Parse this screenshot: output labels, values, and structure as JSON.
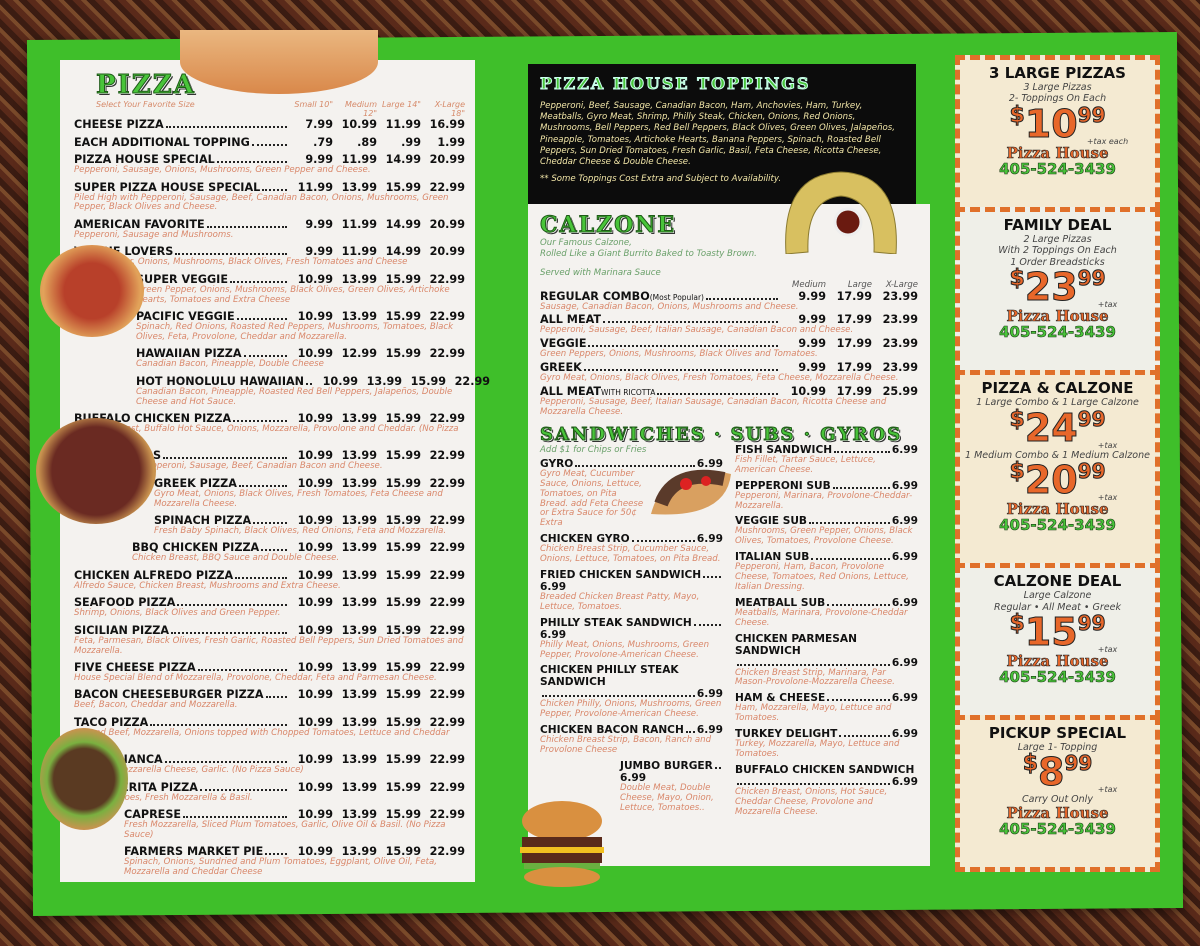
{
  "pizza": {
    "title": "PIZZA",
    "size_label": "Select Your Favorite Size",
    "sizes": [
      "Small 10\"",
      "Medium 12\"",
      "Large 14\"",
      "X-Large 18\""
    ],
    "items": [
      {
        "name": "CHEESE PIZZA",
        "prices": [
          "7.99",
          "10.99",
          "11.99",
          "16.99"
        ],
        "desc": ""
      },
      {
        "name": "EACH ADDITIONAL TOPPING",
        "prices": [
          ".79",
          ".89",
          ".99",
          "1.99"
        ],
        "desc": ""
      },
      {
        "name": "PIZZA HOUSE SPECIAL",
        "prices": [
          "9.99",
          "11.99",
          "14.99",
          "20.99"
        ],
        "desc": "Pepperoni, Sausage, Onions, Mushrooms, Green Pepper and Cheese."
      },
      {
        "name": "SUPER PIZZA HOUSE SPECIAL",
        "prices": [
          "11.99",
          "13.99",
          "15.99",
          "22.99"
        ],
        "desc": "Piled High with Pepperoni, Sausage, Beef, Canadian Bacon, Onions, Mushrooms, Green Pepper, Black Olives and Cheese."
      },
      {
        "name": "AMERICAN FAVORITE",
        "prices": [
          "9.99",
          "11.99",
          "14.99",
          "20.99"
        ],
        "desc": "Pepperoni, Sausage and Mushrooms."
      },
      {
        "name": "VEGGIE LOVERS",
        "prices": [
          "9.99",
          "11.99",
          "14.99",
          "20.99"
        ],
        "desc": "Green Pepper, Onions, Mushrooms, Black Olives, Fresh Tomatoes and Cheese"
      },
      {
        "name": "SUPER VEGGIE",
        "prices": [
          "10.99",
          "13.99",
          "15.99",
          "22.99"
        ],
        "desc": "Green Pepper, Onions, Mushrooms, Black Olives, Green Olives, Artichoke Hearts, Tomatoes and Extra Cheese"
      },
      {
        "name": "PACIFIC VEGGIE",
        "prices": [
          "10.99",
          "13.99",
          "15.99",
          "22.99"
        ],
        "desc": "Spinach, Red Onions, Roasted Red Peppers, Mushrooms, Tomatoes, Black Olives, Feta, Provolone, Cheddar and Mozzarella."
      },
      {
        "name": "HAWAIIAN PIZZA",
        "prices": [
          "10.99",
          "12.99",
          "15.99",
          "22.99"
        ],
        "desc": "Canadian Bacon, Pineapple, Double Cheese"
      },
      {
        "name": "HOT HONOLULU HAWAIIAN",
        "prices": [
          "10.99",
          "13.99",
          "15.99",
          "22.99"
        ],
        "desc": "Canadian Bacon, Pineapple, Roasted Red Bell Peppers, Jalapeños, Double Cheese and Hot Sauce."
      },
      {
        "name": "BUFFALO CHICKEN PIZZA",
        "prices": [
          "10.99",
          "13.99",
          "15.99",
          "22.99"
        ],
        "desc": "Chicken Breast, Buffalo Hot Sauce, Onions, Mozzarella, Provolone and Cheddar. (No Pizza Sauce)"
      },
      {
        "name": "MEAT LOVERS",
        "prices": [
          "10.99",
          "13.99",
          "15.99",
          "22.99"
        ],
        "desc": "Piled High with Pepperoni, Sausage, Beef, Canadian Bacon and Cheese."
      },
      {
        "name": "GREEK PIZZA",
        "prices": [
          "10.99",
          "13.99",
          "15.99",
          "22.99"
        ],
        "desc": "Gyro Meat, Onions, Black Olives, Fresh Tomatoes, Feta Cheese and Mozzarella Cheese."
      },
      {
        "name": "SPINACH PIZZA",
        "prices": [
          "10.99",
          "13.99",
          "15.99",
          "22.99"
        ],
        "desc": "Fresh Baby Spinach, Black Olives, Red Onions, Feta and Mozzarella."
      },
      {
        "name": "BBQ CHICKEN PIZZA",
        "prices": [
          "10.99",
          "13.99",
          "15.99",
          "22.99"
        ],
        "desc": "Chicken Breast, BBQ Sauce and Double Cheese."
      },
      {
        "name": "CHICKEN ALFREDO PIZZA",
        "prices": [
          "10.99",
          "13.99",
          "15.99",
          "22.99"
        ],
        "desc": "Alfredo Sauce, Chicken Breast, Mushrooms and Extra Cheese."
      },
      {
        "name": "SEAFOOD PIZZA",
        "prices": [
          "10.99",
          "13.99",
          "15.99",
          "22.99"
        ],
        "desc": "Shrimp, Onions, Black Olives and Green Pepper."
      },
      {
        "name": "SICILIAN PIZZA",
        "prices": [
          "10.99",
          "13.99",
          "15.99",
          "22.99"
        ],
        "desc": "Feta, Parmesan, Black Olives, Fresh Garlic, Roasted Bell Peppers, Sun Dried Tomatoes and Mozzarella."
      },
      {
        "name": "FIVE CHEESE PIZZA",
        "prices": [
          "10.99",
          "13.99",
          "15.99",
          "22.99"
        ],
        "desc": "House Special Blend of Mozzarella, Provolone, Cheddar, Feta and Parmesan Cheese."
      },
      {
        "name": "BACON CHEESEBURGER PIZZA",
        "prices": [
          "10.99",
          "13.99",
          "15.99",
          "22.99"
        ],
        "desc": "Beef, Bacon, Cheddar and Mozzarella."
      },
      {
        "name": "TACO PIZZA",
        "prices": [
          "10.99",
          "13.99",
          "15.99",
          "22.99"
        ],
        "desc": "Ground Beef, Mozzarella, Onions topped with Chopped Tomatoes, Lettuce and Cheddar Cheese."
      },
      {
        "name": "PIZZA BIANCA",
        "prices": [
          "10.99",
          "13.99",
          "15.99",
          "22.99"
        ],
        "desc": "Olive Oil, Mozzarella Cheese, Garlic. (No Pizza Sauce)"
      },
      {
        "name": "MARGHERITA PIZZA",
        "prices": [
          "10.99",
          "13.99",
          "15.99",
          "22.99"
        ],
        "desc": "Plum Tomatoes, Fresh Mozzarella & Basil."
      },
      {
        "name": "CAPRESE",
        "prices": [
          "10.99",
          "13.99",
          "15.99",
          "22.99"
        ],
        "desc": "Fresh Mozzarella, Sliced Plum Tomatoes, Garlic, Olive Oil & Basil. (No Pizza Sauce)"
      },
      {
        "name": "FARMERS MARKET PIE",
        "prices": [
          "10.99",
          "13.99",
          "15.99",
          "22.99"
        ],
        "desc": "Spinach, Onions, Sundried and Plum Tomatoes, Eggplant, Olive Oil, Feta, Mozzarella and Cheddar Cheese"
      }
    ]
  },
  "toppings": {
    "title": "PIZZA HOUSE TOPPINGS",
    "text": "Pepperoni, Beef, Sausage, Canadian Bacon, Ham, Anchovies, Ham, Turkey, Meatballs, Gyro Meat, Shrimp, Philly Steak, Chicken, Onions, Red Onions, Mushrooms, Bell Peppers, Red Bell Peppers, Black Olives, Green Olives, Jalapeños, Pineapple, Tomatoes, Artichoke Hearts, Banana Peppers, Spinach, Roasted Bell Peppers, Sun Dried Tomatoes, Fresh Garlic, Basil, Feta Cheese, Ricotta Cheese, Cheddar Cheese & Double Cheese.",
    "note": "** Some Toppings Cost Extra and Subject to Availability."
  },
  "calzone": {
    "title": "CALZONE",
    "intro1": "Our Famous Calzone,",
    "intro2": "Rolled Like a Giant Burrito Baked to Toasty Brown.",
    "served": "Served with Marinara Sauce",
    "sizes": [
      "Medium",
      "Large",
      "X-Large"
    ],
    "items": [
      {
        "name": "REGULAR COMBO",
        "tag": "(Most Popular)",
        "prices": [
          "9.99",
          "17.99",
          "23.99"
        ],
        "desc": "Sausage, Canadian Bacon, Onions, Mushrooms and Cheese."
      },
      {
        "name": "ALL MEAT",
        "tag": "",
        "prices": [
          "9.99",
          "17.99",
          "23.99"
        ],
        "desc": "Pepperoni, Sausage, Beef, Italian Sausage, Canadian Bacon and Cheese."
      },
      {
        "name": "VEGGIE",
        "tag": "",
        "prices": [
          "9.99",
          "17.99",
          "23.99"
        ],
        "desc": "Green Peppers, Onions, Mushrooms, Black Olives and Tomatoes."
      },
      {
        "name": "GREEK",
        "tag": "",
        "prices": [
          "9.99",
          "17.99",
          "23.99"
        ],
        "desc": "Gyro Meat, Onions, Black Olives, Fresh Tomatoes, Feta Cheese, Mozzarella Cheese."
      },
      {
        "name": "ALL MEAT",
        "tag": "WITH RICOTTA",
        "prices": [
          "10.99",
          "17.99",
          "25.99"
        ],
        "desc": "Pepperoni, Sausage, Beef, Italian Sausage, Canadian Bacon, Ricotta Cheese and Mozzarella Cheese."
      }
    ]
  },
  "sandwiches": {
    "title": "SANDWICHES · SUBS · GYROS",
    "note": "Add $1 for Chips or Fries",
    "left": [
      {
        "name": "GYRO",
        "price": "6.99",
        "desc": "Gyro Meat, Cucumber Sauce, Onions, Lettuce, Tomatoes, on Pita Bread. add Feta Cheese or Extra Sauce for 50¢ Extra"
      },
      {
        "name": "CHICKEN GYRO",
        "price": "6.99",
        "desc": "Chicken Breast Strip, Cucumber Sauce, Onions, Lettuce, Tomatoes, on Pita Bread."
      },
      {
        "name": "FRIED CHICKEN SANDWICH",
        "price": "6.99",
        "desc": "Breaded Chicken Breast Patty, Mayo, Lettuce, Tomatoes."
      },
      {
        "name": "PHILLY STEAK SANDWICH",
        "price": "6.99",
        "desc": "Philly Meat, Onions, Mushrooms, Green Pepper, Provolone-American Cheese."
      },
      {
        "name": "CHICKEN PHILLY STEAK SANDWICH",
        "price": "6.99",
        "desc": "Chicken Philly, Onions, Mushrooms, Green Pepper, Provolone-American Cheese."
      },
      {
        "name": "CHICKEN BACON RANCH",
        "price": "6.99",
        "desc": "Chicken Breast Strip, Bacon, Ranch and Provolone Cheese"
      },
      {
        "name": "JUMBO BURGER",
        "price": "6.99",
        "desc": "Double Meat, Double Cheese, Mayo, Onion, Lettuce, Tomatoes.."
      }
    ],
    "right": [
      {
        "name": "FISH SANDWICH",
        "price": "6.99",
        "desc": "Fish Fillet, Tartar Sauce, Lettuce, American Cheese."
      },
      {
        "name": "PEPPERONI SUB",
        "price": "6.99",
        "desc": "Pepperoni, Marinara, Provolone-Cheddar-Mozzarella."
      },
      {
        "name": "VEGGIE SUB",
        "price": "6.99",
        "desc": "Mushrooms, Green Pepper, Onions, Black Olives, Tomatoes, Provolone Cheese."
      },
      {
        "name": "ITALIAN SUB",
        "price": "6.99",
        "desc": "Pepperoni, Ham, Bacon, Provolone Cheese, Tomatoes, Red Onions, Lettuce, Italian Dressing."
      },
      {
        "name": "MEATBALL SUB",
        "price": "6.99",
        "desc": "Meatballs, Marinara, Provolone-Cheddar Cheese."
      },
      {
        "name": "CHICKEN PARMESAN SANDWICH",
        "price": "6.99",
        "desc": "Chicken Breast Strip, Marinara, Par Mason-Provolone-Mozzarella Cheese."
      },
      {
        "name": "HAM & CHEESE",
        "price": "6.99",
        "desc": "Ham, Mozzarella, Mayo, Lettuce and Tomatoes."
      },
      {
        "name": "TURKEY DELIGHT",
        "price": "6.99",
        "desc": "Turkey, Mozzarella, Mayo, Lettuce and Tomatoes."
      },
      {
        "name": "BUFFALO CHICKEN SANDWICH",
        "price": "6.99",
        "desc": "Chicken Breast, Onions, Hot Sauce, Cheddar Cheese, Provolone and Mozzarella Cheese."
      }
    ]
  },
  "coupons": [
    {
      "title": "3 LARGE PIZZAS",
      "lines": [
        "3 Large Pizzas",
        "2- Toppings On Each"
      ],
      "prices": [
        {
          "caption": "",
          "cur": "$",
          "dol": "10",
          "cen": "99",
          "tax": "+tax each"
        }
      ],
      "after": "",
      "brand": "Pizza House",
      "phone": "405-524-3439"
    },
    {
      "title": "FAMILY DEAL",
      "lines": [
        "2 Large Pizzas",
        "With 2 Toppings On Each",
        "1 Order Breadsticks"
      ],
      "prices": [
        {
          "caption": "",
          "cur": "$",
          "dol": "23",
          "cen": "99",
          "tax": "+tax"
        }
      ],
      "after": "",
      "brand": "Pizza House",
      "phone": "405-524-3439"
    },
    {
      "title": "PIZZA & CALZONE",
      "lines": [
        "1 Large Combo & 1 Large Calzone"
      ],
      "prices": [
        {
          "caption": "",
          "cur": "$",
          "dol": "24",
          "cen": "99",
          "tax": "+tax"
        },
        {
          "caption": "1 Medium Combo & 1 Medium Calzone",
          "cur": "$",
          "dol": "20",
          "cen": "99",
          "tax": "+tax"
        }
      ],
      "after": "",
      "brand": "Pizza House",
      "phone": "405-524-3439"
    },
    {
      "title": "CALZONE DEAL",
      "lines": [
        "Large Calzone",
        "Regular • All Meat • Greek"
      ],
      "prices": [
        {
          "caption": "",
          "cur": "$",
          "dol": "15",
          "cen": "99",
          "tax": "+tax"
        }
      ],
      "after": "",
      "brand": "Pizza House",
      "phone": "405-524-3439"
    },
    {
      "title": "PICKUP SPECIAL",
      "lines": [
        "Large 1- Topping"
      ],
      "prices": [
        {
          "caption": "",
          "cur": "$",
          "dol": "8",
          "cen": "99",
          "tax": "+tax"
        }
      ],
      "after": "Carry Out Only",
      "brand": "Pizza House",
      "phone": "405-524-3439"
    }
  ],
  "colors": {
    "green": "#3fbf2a",
    "orange": "#e8672a",
    "desc": "#d9876a"
  }
}
